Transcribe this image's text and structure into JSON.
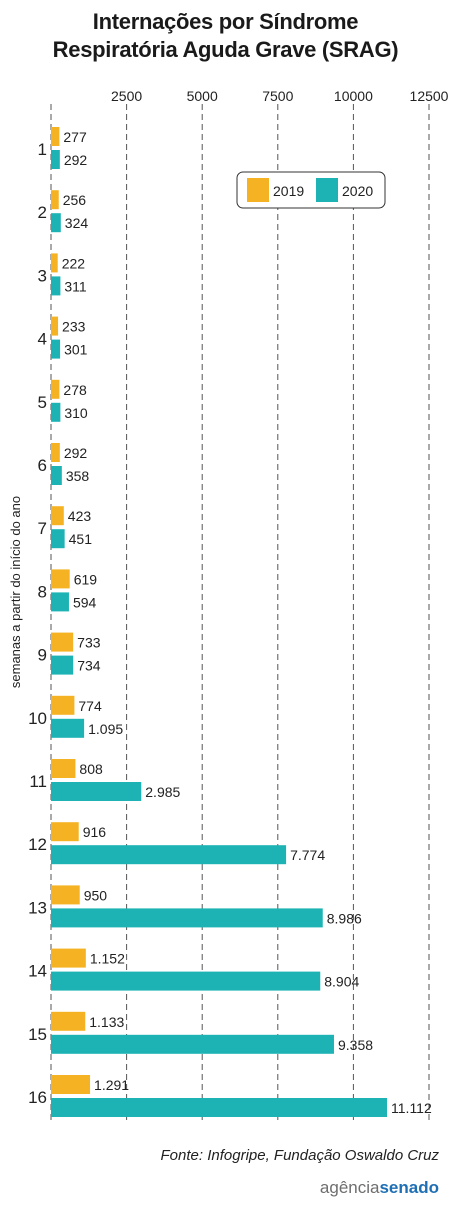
{
  "chart_data": {
    "type": "bar",
    "orientation": "horizontal",
    "title_lines": [
      "Internações por Síndrome",
      "Respiratória Aguda Grave (SRAG)"
    ],
    "ylabel": "semanas a partir do início do ano",
    "xlabel": "",
    "x_ticks": [
      2500,
      5000,
      7500,
      10000,
      12500
    ],
    "xlim": [
      0,
      12500
    ],
    "grid": "vertical-dashed",
    "legend_position": "top-right",
    "categories": [
      "1",
      "2",
      "3",
      "4",
      "5",
      "6",
      "7",
      "8",
      "9",
      "10",
      "11",
      "12",
      "13",
      "14",
      "15",
      "16"
    ],
    "series": [
      {
        "name": "2019",
        "color": "#f5b324",
        "values": [
          277,
          256,
          222,
          233,
          278,
          292,
          423,
          619,
          733,
          774,
          808,
          916,
          950,
          1152,
          1133,
          1291
        ],
        "labels": [
          "277",
          "256",
          "222",
          "233",
          "278",
          "292",
          "423",
          "619",
          "733",
          "774",
          "808",
          "916",
          "950",
          "1.152",
          "1.133",
          "1.291"
        ]
      },
      {
        "name": "2020",
        "color": "#1db3b5",
        "values": [
          292,
          324,
          311,
          301,
          310,
          358,
          451,
          594,
          734,
          1095,
          2985,
          7774,
          8986,
          8904,
          9358,
          11112
        ],
        "labels": [
          "292",
          "324",
          "311",
          "301",
          "310",
          "358",
          "451",
          "594",
          "734",
          "1.095",
          "2.985",
          "7.774",
          "8.986",
          "8.904",
          "9.358",
          "11.112"
        ]
      }
    ]
  },
  "footer": {
    "source": "Fonte: Infogripe, Fundação Oswaldo Cruz",
    "logo_part1": "agência",
    "logo_part2": "senado"
  }
}
